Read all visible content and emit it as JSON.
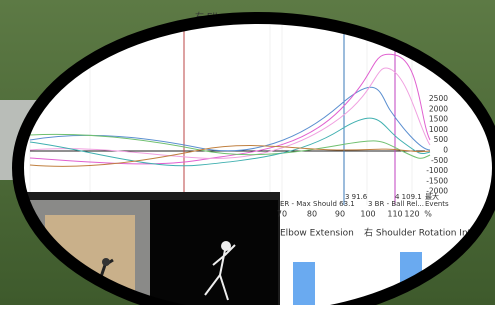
{
  "legend": {
    "items": [
      "右 Elbow Extension"
    ]
  },
  "y_axis": {
    "labels": [
      2500,
      2000,
      1500,
      1000,
      500,
      0,
      -500,
      -1000,
      -1500,
      -2000
    ]
  },
  "events": {
    "markers": [
      "3 91.6",
      "4 109.1",
      "最大"
    ],
    "names": [
      "ER - Max Should 63.1",
      "3 BR - Ball Rel...",
      "Events"
    ]
  },
  "x_axis": {
    "labels": [
      70,
      80,
      90,
      100,
      110,
      120,
      "%"
    ]
  },
  "bottom_panels": {
    "titles": [
      "Elbow Extension",
      "右 Shoulder Rotation Int"
    ]
  }
}
